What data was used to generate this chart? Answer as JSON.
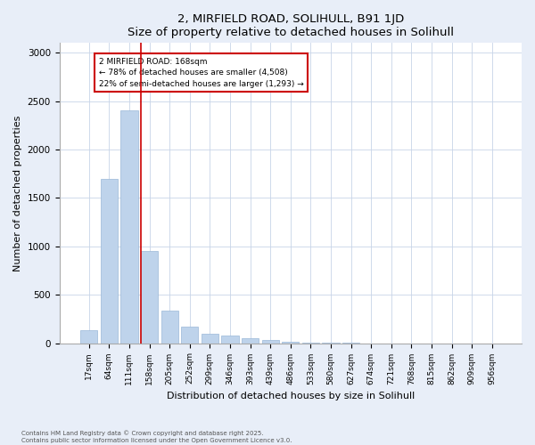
{
  "title1": "2, MIRFIELD ROAD, SOLIHULL, B91 1JD",
  "title2": "Size of property relative to detached houses in Solihull",
  "xlabel": "Distribution of detached houses by size in Solihull",
  "ylabel": "Number of detached properties",
  "categories": [
    "17sqm",
    "64sqm",
    "111sqm",
    "158sqm",
    "205sqm",
    "252sqm",
    "299sqm",
    "346sqm",
    "393sqm",
    "439sqm",
    "486sqm",
    "533sqm",
    "580sqm",
    "627sqm",
    "674sqm",
    "721sqm",
    "768sqm",
    "815sqm",
    "862sqm",
    "909sqm",
    "956sqm"
  ],
  "values": [
    130,
    1700,
    2400,
    950,
    340,
    170,
    100,
    80,
    55,
    30,
    15,
    5,
    3,
    1,
    0,
    0,
    0,
    0,
    0,
    0,
    0
  ],
  "bar_color": "#bed3eb",
  "bar_edge_color": "#9ab8d8",
  "vline_color": "#cc0000",
  "annotation_title": "2 MIRFIELD ROAD: 168sqm",
  "annotation_line1": "← 78% of detached houses are smaller (4,508)",
  "annotation_line2": "22% of semi-detached houses are larger (1,293) →",
  "annotation_box_color": "#cc0000",
  "ylim": [
    0,
    3100
  ],
  "yticks": [
    0,
    500,
    1000,
    1500,
    2000,
    2500,
    3000
  ],
  "footer1": "Contains HM Land Registry data © Crown copyright and database right 2025.",
  "footer2": "Contains public sector information licensed under the Open Government Licence v3.0.",
  "bg_color": "#e8eef8",
  "plot_bg_color": "#ffffff",
  "grid_color": "#c8d4e8"
}
